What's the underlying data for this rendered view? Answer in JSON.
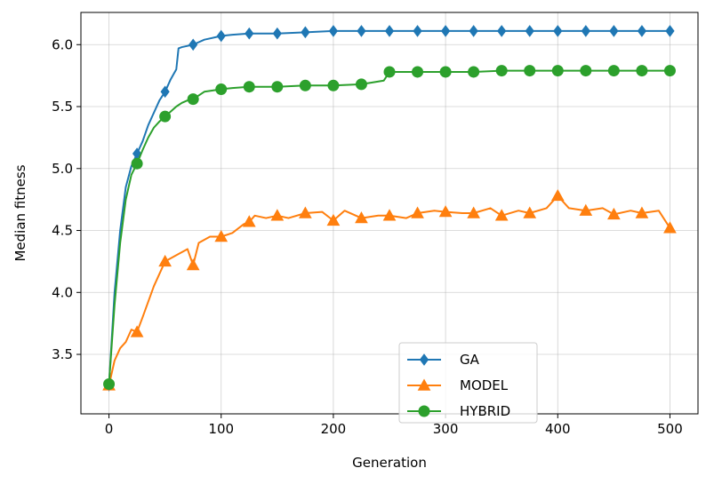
{
  "chart_data": {
    "type": "line",
    "title": "",
    "xlabel": "Generation",
    "ylabel": "Median fitness",
    "xlim": [
      -25,
      525
    ],
    "ylim": [
      3.02,
      6.26
    ],
    "xticks": [
      0,
      100,
      200,
      300,
      400,
      500
    ],
    "xtick_labels": [
      "0",
      "100",
      "200",
      "300",
      "400",
      "500"
    ],
    "yticks": [
      3.5,
      4.0,
      4.5,
      5.0,
      5.5,
      6.0
    ],
    "ytick_labels": [
      "3.5",
      "4.0",
      "4.5",
      "5.0",
      "5.5",
      "6.0"
    ],
    "grid": true,
    "legend_position": "lower-center",
    "series": [
      {
        "name": "GA",
        "color": "#1f77b4",
        "marker": "diamond",
        "x": [
          0,
          5,
          10,
          15,
          20,
          25,
          30,
          35,
          40,
          45,
          50,
          55,
          60,
          62,
          65,
          70,
          75,
          80,
          85,
          90,
          95,
          100,
          110,
          125,
          150,
          175,
          200,
          225,
          250,
          275,
          300,
          325,
          350,
          375,
          400,
          425,
          450,
          475,
          500
        ],
        "y": [
          3.25,
          4.0,
          4.5,
          4.85,
          5.02,
          5.12,
          5.22,
          5.35,
          5.45,
          5.55,
          5.62,
          5.72,
          5.8,
          5.97,
          5.98,
          5.99,
          6.0,
          6.02,
          6.04,
          6.05,
          6.06,
          6.07,
          6.08,
          6.09,
          6.09,
          6.1,
          6.11,
          6.11,
          6.11,
          6.11,
          6.11,
          6.11,
          6.11,
          6.11,
          6.11,
          6.11,
          6.11,
          6.11,
          6.11
        ]
      },
      {
        "name": "MODEL",
        "color": "#ff7f0e",
        "marker": "triangle",
        "x": [
          0,
          5,
          10,
          15,
          20,
          25,
          30,
          40,
          50,
          60,
          70,
          75,
          80,
          90,
          100,
          110,
          120,
          125,
          130,
          140,
          150,
          160,
          175,
          190,
          200,
          210,
          225,
          240,
          250,
          265,
          275,
          290,
          300,
          315,
          325,
          340,
          350,
          365,
          375,
          390,
          400,
          410,
          425,
          440,
          450,
          465,
          475,
          490,
          500
        ],
        "y": [
          3.25,
          3.45,
          3.55,
          3.6,
          3.7,
          3.68,
          3.8,
          4.05,
          4.25,
          4.3,
          4.35,
          4.22,
          4.4,
          4.45,
          4.45,
          4.48,
          4.55,
          4.57,
          4.62,
          4.6,
          4.62,
          4.6,
          4.64,
          4.65,
          4.58,
          4.66,
          4.6,
          4.62,
          4.62,
          4.6,
          4.64,
          4.66,
          4.65,
          4.64,
          4.64,
          4.68,
          4.62,
          4.66,
          4.64,
          4.68,
          4.78,
          4.68,
          4.66,
          4.68,
          4.63,
          4.66,
          4.64,
          4.66,
          4.52
        ]
      },
      {
        "name": "HYBRID",
        "color": "#2ca02c",
        "marker": "circle",
        "x": [
          0,
          5,
          10,
          15,
          20,
          25,
          30,
          35,
          40,
          45,
          50,
          55,
          60,
          65,
          70,
          75,
          85,
          100,
          110,
          125,
          150,
          175,
          200,
          225,
          245,
          250,
          275,
          300,
          325,
          350,
          375,
          400,
          425,
          450,
          475,
          500
        ],
        "y": [
          3.26,
          3.9,
          4.4,
          4.75,
          4.95,
          5.04,
          5.15,
          5.25,
          5.33,
          5.38,
          5.42,
          5.46,
          5.5,
          5.53,
          5.55,
          5.56,
          5.62,
          5.64,
          5.65,
          5.66,
          5.66,
          5.67,
          5.67,
          5.68,
          5.71,
          5.78,
          5.78,
          5.78,
          5.78,
          5.79,
          5.79,
          5.79,
          5.79,
          5.79,
          5.79,
          5.79
        ]
      }
    ]
  }
}
